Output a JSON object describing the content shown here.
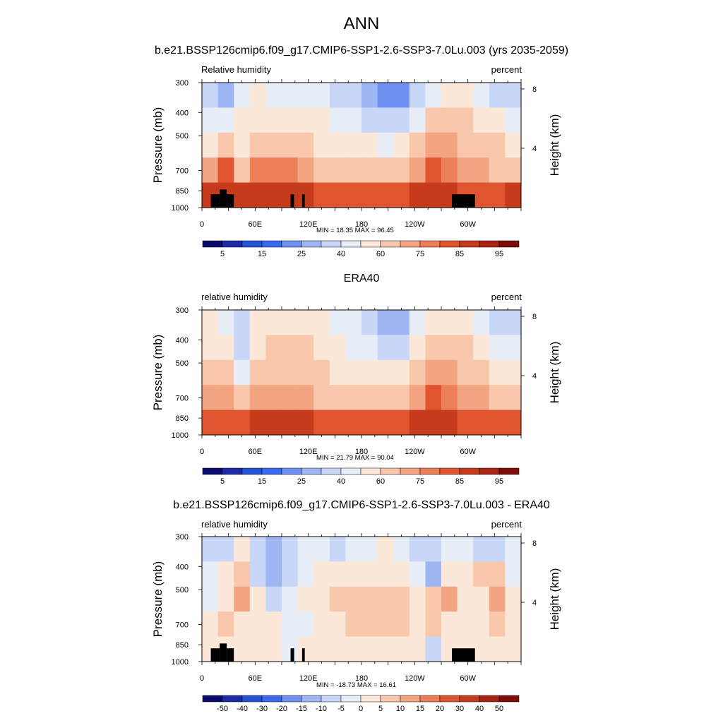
{
  "figure": {
    "title": "ANN"
  },
  "colorbar_colors": [
    "#0a0a6e",
    "#1b2ba7",
    "#2553d6",
    "#3a68ef",
    "#6f92f2",
    "#9fb6f4",
    "#c8d7f7",
    "#e8eef8",
    "#fce8d8",
    "#f8c7ac",
    "#f3a582",
    "#ec7e58",
    "#e0552f",
    "#c63b1c",
    "#a82414",
    "#7e0c08"
  ],
  "panels": [
    {
      "title": "b.e21.BSSP126cmip6.f09_g17.CMIP6-SSP1-2.6-SSP3-7.0Lu.003 (yrs 2035-2059)",
      "left_label": "Relative humidity",
      "right_label": "percent",
      "minmax": "MIN = 18.35  MAX = 96.45",
      "colorbar_labels": [
        "5",
        "15",
        "25",
        "40",
        "60",
        "75",
        "85",
        "95"
      ]
    },
    {
      "title": "ERA40",
      "left_label": "relative humidity",
      "right_label": "percent",
      "minmax": "MIN = 21.79  MAX = 90.04",
      "colorbar_labels": [
        "5",
        "15",
        "25",
        "40",
        "60",
        "75",
        "85",
        "95"
      ]
    },
    {
      "title": "b.e21.BSSP126cmip6.f09_g17.CMIP6-SSP1-2.6-SSP3-7.0Lu.003 - ERA40",
      "left_label": "relative humidity",
      "right_label": "percent",
      "minmax": "MIN = -18.73  MAX = 16.61",
      "colorbar_labels": [
        "-50",
        "-40",
        "-30",
        "-20",
        "-15",
        "-10",
        "-5",
        "0",
        "5",
        "10",
        "15",
        "20",
        "30",
        "40",
        "50"
      ]
    }
  ],
  "chart_data": [
    {
      "type": "heatmap",
      "title": "b.e21.BSSP126cmip6.f09_g17.CMIP6-SSP1-2.6-SSP3-7.0Lu.003 (yrs 2035-2059)",
      "variable": "Relative humidity",
      "units": "percent",
      "x_ticks": [
        "0",
        "60E",
        "120E",
        "180",
        "120W",
        "60W"
      ],
      "x_tick_values": [
        0,
        60,
        120,
        180,
        240,
        300
      ],
      "xlim": [
        0,
        360
      ],
      "ylabel": "Pressure (mb)",
      "y_ticks": [
        "300",
        "400",
        "500",
        "700",
        "850",
        "1000"
      ],
      "y_tick_values": [
        300,
        400,
        500,
        700,
        850,
        1000
      ],
      "ylim": [
        1000,
        300
      ],
      "y_scale": "log",
      "y2label": "Height (km)",
      "y2_ticks": [
        "8",
        "4"
      ],
      "y2_tick_values": [
        8,
        4
      ],
      "min": 18.35,
      "max": 96.45,
      "levels": [
        5,
        10,
        15,
        20,
        25,
        30,
        40,
        50,
        60,
        70,
        75,
        80,
        85,
        90,
        95
      ],
      "field": [
        [
          38,
          28,
          44,
          50,
          48,
          48,
          42,
          40,
          36,
          30,
          26,
          22,
          20,
          30,
          44,
          50,
          56,
          46,
          38,
          34
        ],
        [
          48,
          42,
          50,
          56,
          56,
          58,
          54,
          50,
          46,
          40,
          34,
          30,
          30,
          44,
          60,
          60,
          62,
          56,
          50,
          46
        ],
        [
          58,
          62,
          56,
          64,
          66,
          66,
          64,
          58,
          56,
          52,
          50,
          48,
          50,
          60,
          72,
          70,
          66,
          64,
          60,
          56
        ],
        [
          70,
          80,
          66,
          76,
          76,
          76,
          72,
          68,
          64,
          62,
          60,
          60,
          62,
          70,
          82,
          78,
          72,
          70,
          68,
          66
        ],
        [
          86,
          88,
          86,
          88,
          86,
          88,
          86,
          84,
          82,
          80,
          80,
          82,
          84,
          86,
          88,
          86,
          84,
          84,
          84,
          86
        ]
      ],
      "masked": [
        {
          "x": [
            10,
            20
          ],
          "p": [
            880,
            1000
          ]
        },
        {
          "x": [
            20,
            28
          ],
          "p": [
            840,
            1000
          ]
        },
        {
          "x": [
            28,
            36
          ],
          "p": [
            880,
            1000
          ]
        },
        {
          "x": [
            100,
            104
          ],
          "p": [
            880,
            1000
          ]
        },
        {
          "x": [
            113,
            116
          ],
          "p": [
            880,
            1000
          ]
        },
        {
          "x": [
            282,
            308
          ],
          "p": [
            880,
            1000
          ]
        }
      ]
    },
    {
      "type": "heatmap",
      "title": "ERA40",
      "variable": "relative humidity",
      "units": "percent",
      "x_ticks": [
        "0",
        "60E",
        "120E",
        "180",
        "120W",
        "60W"
      ],
      "x_tick_values": [
        0,
        60,
        120,
        180,
        240,
        300
      ],
      "xlim": [
        0,
        360
      ],
      "ylabel": "Pressure (mb)",
      "y_ticks": [
        "300",
        "400",
        "500",
        "700",
        "850",
        "1000"
      ],
      "y_tick_values": [
        300,
        400,
        500,
        700,
        850,
        1000
      ],
      "ylim": [
        1000,
        300
      ],
      "y_scale": "log",
      "y2label": "Height (km)",
      "y2_ticks": [
        "8",
        "4"
      ],
      "y2_tick_values": [
        8,
        4
      ],
      "min": 21.79,
      "max": 90.04,
      "levels": [
        5,
        10,
        15,
        20,
        25,
        30,
        40,
        50,
        60,
        70,
        75,
        80,
        85,
        90,
        95
      ],
      "field": [
        [
          50,
          44,
          30,
          52,
          56,
          58,
          56,
          54,
          48,
          40,
          34,
          28,
          28,
          42,
          58,
          56,
          54,
          44,
          36,
          38
        ],
        [
          56,
          50,
          34,
          58,
          62,
          64,
          62,
          58,
          54,
          48,
          42,
          36,
          38,
          52,
          66,
          62,
          60,
          52,
          46,
          48
        ],
        [
          62,
          60,
          48,
          62,
          66,
          68,
          66,
          62,
          58,
          56,
          52,
          50,
          52,
          62,
          74,
          70,
          66,
          62,
          58,
          58
        ],
        [
          70,
          74,
          64,
          72,
          74,
          74,
          72,
          68,
          64,
          62,
          60,
          60,
          62,
          70,
          80,
          76,
          72,
          70,
          68,
          68
        ],
        [
          82,
          84,
          82,
          86,
          86,
          88,
          86,
          84,
          82,
          80,
          80,
          82,
          84,
          86,
          88,
          86,
          84,
          84,
          84,
          84
        ]
      ]
    },
    {
      "type": "heatmap",
      "title": "b.e21.BSSP126cmip6.f09_g17.CMIP6-SSP1-2.6-SSP3-7.0Lu.003 - ERA40",
      "variable": "relative humidity",
      "units": "percent",
      "x_ticks": [
        "0",
        "60E",
        "120E",
        "180",
        "120W",
        "60W"
      ],
      "x_tick_values": [
        0,
        60,
        120,
        180,
        240,
        300
      ],
      "xlim": [
        0,
        360
      ],
      "ylabel": "Pressure (mb)",
      "y_ticks": [
        "300",
        "400",
        "500",
        "700",
        "850",
        "1000"
      ],
      "y_tick_values": [
        300,
        400,
        500,
        700,
        850,
        1000
      ],
      "ylim": [
        1000,
        300
      ],
      "y_scale": "log",
      "y2label": "Height (km)",
      "y2_ticks": [
        "8",
        "4"
      ],
      "y2_tick_values": [
        8,
        4
      ],
      "min": -18.73,
      "max": 16.61,
      "levels": [
        -50,
        -40,
        -30,
        -20,
        -15,
        -10,
        -5,
        0,
        5,
        10,
        15,
        20,
        30,
        40,
        50
      ],
      "field": [
        [
          -8,
          -6,
          2,
          -10,
          -12,
          -10,
          -4,
          -2,
          -6,
          -4,
          -2,
          0,
          -4,
          -8,
          -10,
          -2,
          -4,
          -6,
          -8,
          -4
        ],
        [
          -4,
          4,
          8,
          -6,
          -14,
          -6,
          -2,
          4,
          4,
          2,
          4,
          4,
          2,
          -4,
          -12,
          4,
          2,
          6,
          8,
          -2
        ],
        [
          -2,
          2,
          10,
          4,
          -6,
          -2,
          2,
          4,
          6,
          6,
          8,
          8,
          6,
          2,
          6,
          10,
          2,
          4,
          12,
          2
        ],
        [
          0,
          6,
          4,
          4,
          2,
          -2,
          -2,
          2,
          4,
          6,
          8,
          8,
          6,
          4,
          8,
          4,
          2,
          4,
          6,
          2
        ],
        [
          2,
          2,
          4,
          2,
          0,
          -4,
          0,
          2,
          2,
          2,
          2,
          2,
          2,
          0,
          -6,
          2,
          0,
          0,
          2,
          0
        ]
      ],
      "masked": [
        {
          "x": [
            10,
            20
          ],
          "p": [
            880,
            1000
          ]
        },
        {
          "x": [
            20,
            28
          ],
          "p": [
            840,
            1000
          ]
        },
        {
          "x": [
            28,
            36
          ],
          "p": [
            880,
            1000
          ]
        },
        {
          "x": [
            100,
            104
          ],
          "p": [
            880,
            1000
          ]
        },
        {
          "x": [
            113,
            116
          ],
          "p": [
            880,
            1000
          ]
        },
        {
          "x": [
            282,
            308
          ],
          "p": [
            880,
            1000
          ]
        }
      ]
    }
  ]
}
